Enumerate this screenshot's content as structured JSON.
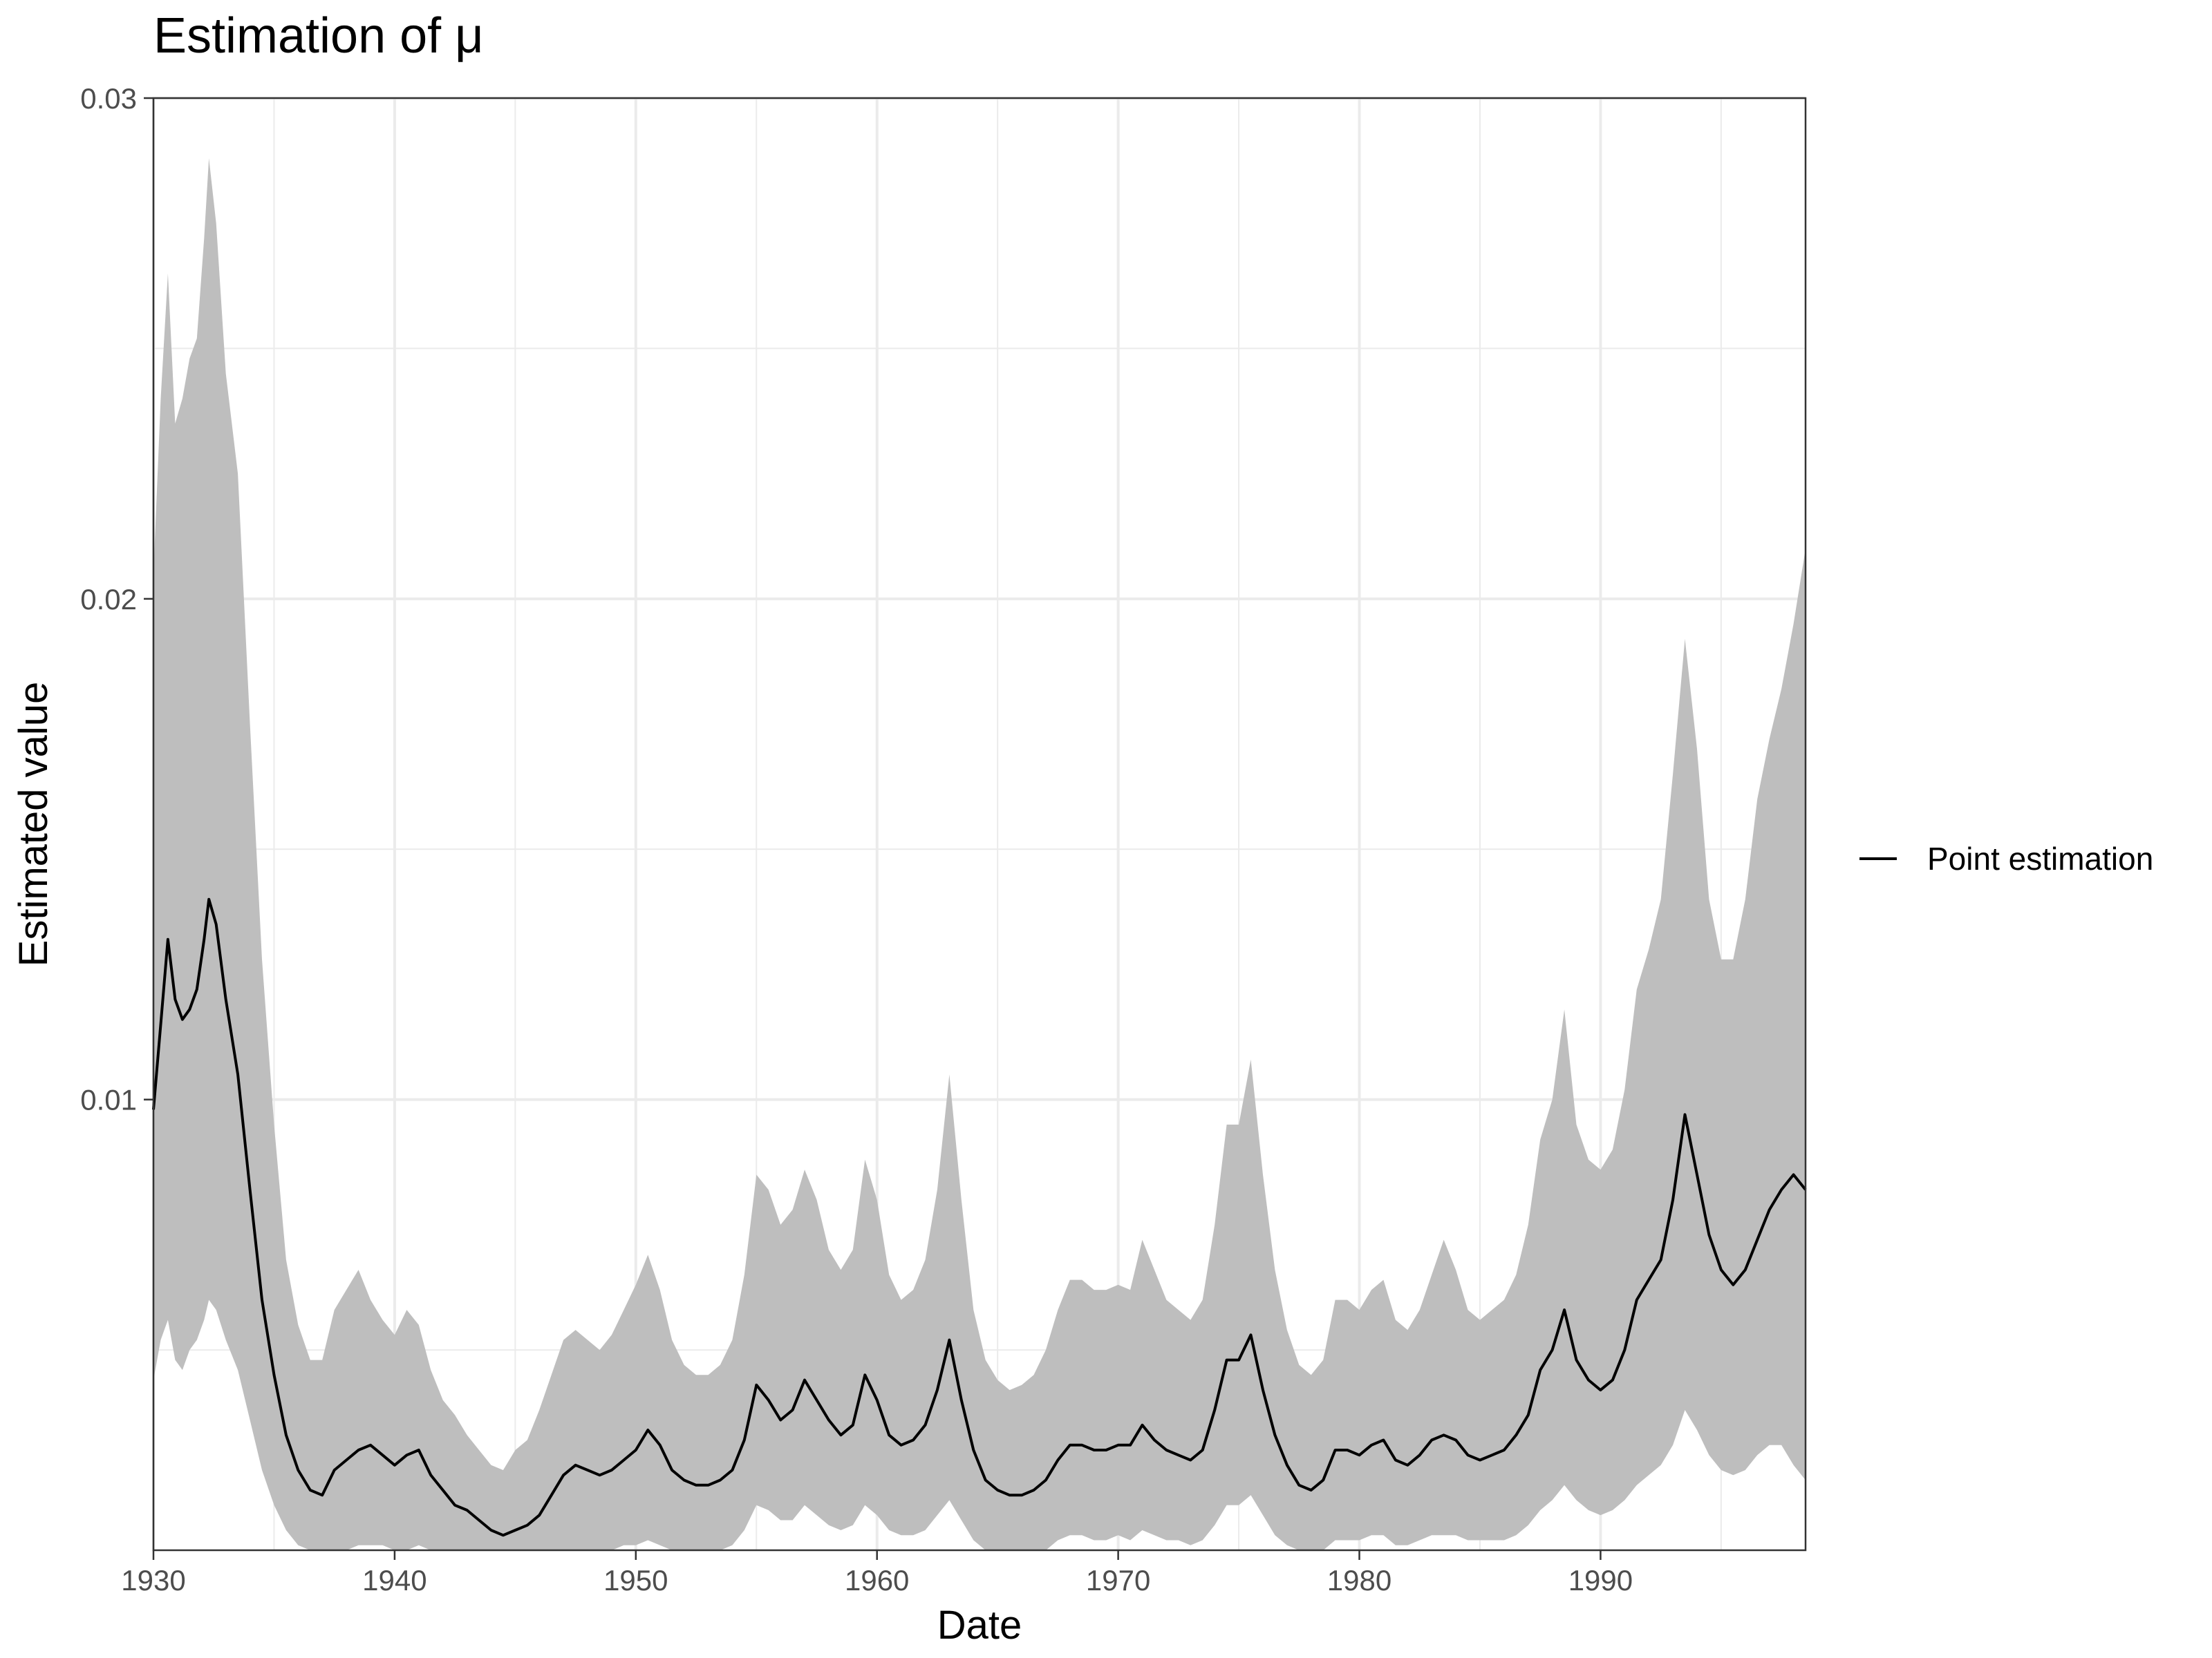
{
  "chart_data": {
    "type": "area",
    "title": "Estimation of μ",
    "xlabel": "Date",
    "ylabel": "Estimated value",
    "xlim": [
      1930,
      1998.5
    ],
    "ylim": [
      0.001,
      0.03
    ],
    "x_ticks": [
      1930,
      1940,
      1950,
      1960,
      1970,
      1980,
      1990
    ],
    "x_tick_labels": [
      "1930",
      "1940",
      "1950",
      "1960",
      "1970",
      "1980",
      "1990"
    ],
    "y_ticks": [
      0.01,
      0.02,
      0.03
    ],
    "y_tick_labels": [
      "0.01",
      "0.02",
      "0.03"
    ],
    "grid": true,
    "legend": {
      "position": "right",
      "entries": [
        {
          "label": "Point estimation",
          "color": "#000000"
        }
      ]
    },
    "colors": {
      "band": "#bebebe",
      "line": "#000000",
      "grid": "#ebebeb"
    },
    "series": [
      {
        "name": "Point estimation",
        "kind": "line",
        "x": [
          1930.0,
          1930.3,
          1930.6,
          1930.9,
          1931.2,
          1931.5,
          1931.8,
          1932.1,
          1932.3,
          1932.6,
          1933.0,
          1933.5,
          1934.0,
          1934.5,
          1935.0,
          1935.5,
          1936.0,
          1936.5,
          1937.0,
          1937.5,
          1938.0,
          1938.5,
          1939.0,
          1939.5,
          1940.0,
          1940.5,
          1941.0,
          1941.5,
          1942.0,
          1942.5,
          1943.0,
          1943.5,
          1944.0,
          1944.5,
          1945.0,
          1945.5,
          1946.0,
          1946.5,
          1947.0,
          1947.5,
          1948.0,
          1948.5,
          1949.0,
          1949.5,
          1950.0,
          1950.5,
          1951.0,
          1951.5,
          1952.0,
          1952.5,
          1953.0,
          1953.5,
          1954.0,
          1954.5,
          1955.0,
          1955.5,
          1956.0,
          1956.5,
          1957.0,
          1957.5,
          1958.0,
          1958.5,
          1959.0,
          1959.5,
          1960.0,
          1960.5,
          1961.0,
          1961.5,
          1962.0,
          1962.5,
          1963.0,
          1963.5,
          1964.0,
          1964.5,
          1965.0,
          1965.5,
          1966.0,
          1966.5,
          1967.0,
          1967.5,
          1968.0,
          1968.5,
          1969.0,
          1969.5,
          1970.0,
          1970.5,
          1971.0,
          1971.5,
          1972.0,
          1972.5,
          1973.0,
          1973.5,
          1974.0,
          1974.5,
          1975.0,
          1975.5,
          1976.0,
          1976.5,
          1977.0,
          1977.5,
          1978.0,
          1978.5,
          1979.0,
          1979.5,
          1980.0,
          1980.5,
          1981.0,
          1981.5,
          1982.0,
          1982.5,
          1983.0,
          1983.5,
          1984.0,
          1984.5,
          1985.0,
          1985.5,
          1986.0,
          1986.5,
          1987.0,
          1987.5,
          1988.0,
          1988.5,
          1989.0,
          1989.5,
          1990.0,
          1990.5,
          1991.0,
          1991.5,
          1992.0,
          1992.5,
          1993.0,
          1993.5,
          1994.0,
          1994.5,
          1995.0,
          1995.5,
          1996.0,
          1996.5,
          1997.0,
          1997.5,
          1998.0,
          1998.5
        ],
        "values": [
          0.0098,
          0.0115,
          0.0132,
          0.012,
          0.0116,
          0.0118,
          0.0122,
          0.0132,
          0.014,
          0.0135,
          0.012,
          0.0105,
          0.0082,
          0.006,
          0.0045,
          0.0033,
          0.0026,
          0.0022,
          0.0021,
          0.0026,
          0.0028,
          0.003,
          0.0031,
          0.0029,
          0.0027,
          0.0029,
          0.003,
          0.0025,
          0.0022,
          0.0019,
          0.0018,
          0.0016,
          0.0014,
          0.0013,
          0.0014,
          0.0015,
          0.0017,
          0.0021,
          0.0025,
          0.0027,
          0.0026,
          0.0025,
          0.0026,
          0.0028,
          0.003,
          0.0034,
          0.0031,
          0.0026,
          0.0024,
          0.0023,
          0.0023,
          0.0024,
          0.0026,
          0.0032,
          0.0043,
          0.004,
          0.0036,
          0.0038,
          0.0044,
          0.004,
          0.0036,
          0.0033,
          0.0035,
          0.0045,
          0.004,
          0.0033,
          0.0031,
          0.0032,
          0.0035,
          0.0042,
          0.0052,
          0.004,
          0.003,
          0.0024,
          0.0022,
          0.0021,
          0.0021,
          0.0022,
          0.0024,
          0.0028,
          0.0031,
          0.0031,
          0.003,
          0.003,
          0.0031,
          0.0031,
          0.0035,
          0.0032,
          0.003,
          0.0029,
          0.0028,
          0.003,
          0.0038,
          0.0048,
          0.0048,
          0.0053,
          0.0042,
          0.0033,
          0.0027,
          0.0023,
          0.0022,
          0.0024,
          0.003,
          0.003,
          0.0029,
          0.0031,
          0.0032,
          0.0028,
          0.0027,
          0.0029,
          0.0032,
          0.0033,
          0.0032,
          0.0029,
          0.0028,
          0.0029,
          0.003,
          0.0033,
          0.0037,
          0.0046,
          0.005,
          0.0058,
          0.0048,
          0.0044,
          0.0042,
          0.0044,
          0.005,
          0.006,
          0.0064,
          0.0068,
          0.008,
          0.0097,
          0.0085,
          0.0073,
          0.0066,
          0.0063,
          0.0066,
          0.0072,
          0.0078,
          0.0082,
          0.0085,
          0.0082
        ]
      },
      {
        "name": "",
        "kind": "band",
        "x": [
          1930.0,
          1930.3,
          1930.6,
          1930.9,
          1931.2,
          1931.5,
          1931.8,
          1932.1,
          1932.3,
          1932.6,
          1933.0,
          1933.5,
          1934.0,
          1934.5,
          1935.0,
          1935.5,
          1936.0,
          1936.5,
          1937.0,
          1937.5,
          1938.0,
          1938.5,
          1939.0,
          1939.5,
          1940.0,
          1940.5,
          1941.0,
          1941.5,
          1942.0,
          1942.5,
          1943.0,
          1943.5,
          1944.0,
          1944.5,
          1945.0,
          1945.5,
          1946.0,
          1946.5,
          1947.0,
          1947.5,
          1948.0,
          1948.5,
          1949.0,
          1949.5,
          1950.0,
          1950.5,
          1951.0,
          1951.5,
          1952.0,
          1952.5,
          1953.0,
          1953.5,
          1954.0,
          1954.5,
          1955.0,
          1955.5,
          1956.0,
          1956.5,
          1957.0,
          1957.5,
          1958.0,
          1958.5,
          1959.0,
          1959.5,
          1960.0,
          1960.5,
          1961.0,
          1961.5,
          1962.0,
          1962.5,
          1963.0,
          1963.5,
          1964.0,
          1964.5,
          1965.0,
          1965.5,
          1966.0,
          1966.5,
          1967.0,
          1967.5,
          1968.0,
          1968.5,
          1969.0,
          1969.5,
          1970.0,
          1970.5,
          1971.0,
          1971.5,
          1972.0,
          1972.5,
          1973.0,
          1973.5,
          1974.0,
          1974.5,
          1975.0,
          1975.5,
          1976.0,
          1976.5,
          1977.0,
          1977.5,
          1978.0,
          1978.5,
          1979.0,
          1979.5,
          1980.0,
          1980.5,
          1981.0,
          1981.5,
          1982.0,
          1982.5,
          1983.0,
          1983.5,
          1984.0,
          1984.5,
          1985.0,
          1985.5,
          1986.0,
          1986.5,
          1987.0,
          1987.5,
          1988.0,
          1988.5,
          1989.0,
          1989.5,
          1990.0,
          1990.5,
          1991.0,
          1991.5,
          1992.0,
          1992.5,
          1993.0,
          1993.5,
          1994.0,
          1994.5,
          1995.0,
          1995.5,
          1996.0,
          1996.5,
          1997.0,
          1997.5,
          1998.0,
          1998.5
        ],
        "lower": [
          0.0044,
          0.0052,
          0.0056,
          0.0048,
          0.0046,
          0.005,
          0.0052,
          0.0056,
          0.006,
          0.0058,
          0.0052,
          0.0046,
          0.0036,
          0.0026,
          0.0019,
          0.0014,
          0.0011,
          0.0009,
          0.0008,
          0.0009,
          0.001,
          0.0011,
          0.0011,
          0.0011,
          0.001,
          0.001,
          0.0011,
          0.0009,
          0.0008,
          0.0007,
          0.0006,
          0.0006,
          0.0005,
          0.0005,
          0.0005,
          0.0006,
          0.0007,
          0.0008,
          0.0009,
          0.001,
          0.001,
          0.0009,
          0.001,
          0.0011,
          0.0011,
          0.0012,
          0.0011,
          0.001,
          0.0009,
          0.0009,
          0.0009,
          0.001,
          0.0011,
          0.0014,
          0.0019,
          0.0018,
          0.0016,
          0.0016,
          0.0019,
          0.0017,
          0.0015,
          0.0014,
          0.0015,
          0.0019,
          0.0017,
          0.0014,
          0.0013,
          0.0013,
          0.0014,
          0.0017,
          0.002,
          0.0016,
          0.0012,
          0.001,
          0.0009,
          0.0008,
          0.0008,
          0.0009,
          0.001,
          0.0012,
          0.0013,
          0.0013,
          0.0012,
          0.0012,
          0.0013,
          0.0012,
          0.0014,
          0.0013,
          0.0012,
          0.0012,
          0.0011,
          0.0012,
          0.0015,
          0.0019,
          0.0019,
          0.0021,
          0.0017,
          0.0013,
          0.0011,
          0.0009,
          0.0009,
          0.001,
          0.0012,
          0.0012,
          0.0012,
          0.0013,
          0.0013,
          0.0011,
          0.0011,
          0.0012,
          0.0013,
          0.0013,
          0.0013,
          0.0012,
          0.0012,
          0.0012,
          0.0012,
          0.0013,
          0.0015,
          0.0018,
          0.002,
          0.0023,
          0.002,
          0.0018,
          0.0017,
          0.0018,
          0.002,
          0.0023,
          0.0025,
          0.0027,
          0.0031,
          0.0038,
          0.0034,
          0.0029,
          0.0026,
          0.0025,
          0.0026,
          0.0029,
          0.0031,
          0.0031,
          0.0027,
          0.0024
        ],
        "upper": [
          0.0205,
          0.024,
          0.0265,
          0.0235,
          0.024,
          0.0248,
          0.0252,
          0.0272,
          0.0288,
          0.0275,
          0.0245,
          0.0225,
          0.0175,
          0.0128,
          0.0095,
          0.0068,
          0.0055,
          0.0048,
          0.0048,
          0.0058,
          0.0062,
          0.0066,
          0.006,
          0.0056,
          0.0053,
          0.0058,
          0.0055,
          0.0046,
          0.004,
          0.0037,
          0.0033,
          0.003,
          0.0027,
          0.0026,
          0.003,
          0.0032,
          0.0038,
          0.0045,
          0.0052,
          0.0054,
          0.0052,
          0.005,
          0.0053,
          0.0058,
          0.0063,
          0.0069,
          0.0062,
          0.0052,
          0.0047,
          0.0045,
          0.0045,
          0.0047,
          0.0052,
          0.0065,
          0.0085,
          0.0082,
          0.0075,
          0.0078,
          0.0086,
          0.008,
          0.007,
          0.0066,
          0.007,
          0.0088,
          0.008,
          0.0065,
          0.006,
          0.0062,
          0.0068,
          0.0082,
          0.0105,
          0.008,
          0.0058,
          0.0048,
          0.0044,
          0.0042,
          0.0043,
          0.0045,
          0.005,
          0.0058,
          0.0064,
          0.0064,
          0.0062,
          0.0062,
          0.0063,
          0.0062,
          0.0072,
          0.0066,
          0.006,
          0.0058,
          0.0056,
          0.006,
          0.0075,
          0.0095,
          0.0095,
          0.0108,
          0.0085,
          0.0066,
          0.0054,
          0.0047,
          0.0045,
          0.0048,
          0.006,
          0.006,
          0.0058,
          0.0062,
          0.0064,
          0.0056,
          0.0054,
          0.0058,
          0.0065,
          0.0072,
          0.0066,
          0.0058,
          0.0056,
          0.0058,
          0.006,
          0.0065,
          0.0075,
          0.0092,
          0.01,
          0.0118,
          0.0095,
          0.0088,
          0.0086,
          0.009,
          0.0102,
          0.0122,
          0.013,
          0.014,
          0.0165,
          0.0192,
          0.017,
          0.014,
          0.0128,
          0.0128,
          0.014,
          0.016,
          0.0172,
          0.0182,
          0.0195,
          0.021
        ]
      }
    ]
  }
}
